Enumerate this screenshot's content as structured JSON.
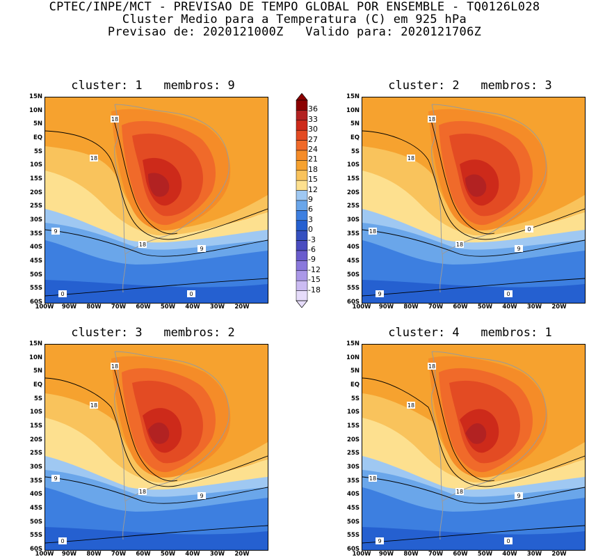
{
  "header": {
    "line1": "CPTEC/INPE/MCT - PREVISAO DE TEMPO GLOBAL POR ENSEMBLE - TQ0126L028",
    "line2": "Cluster Medio para a Temperatura (C) em 925 hPa",
    "line3": "Previsao de: 2020121000Z   Valido para: 2020121706Z"
  },
  "lat_ticks": [
    "15N",
    "10N",
    "5N",
    "EQ",
    "5S",
    "10S",
    "15S",
    "20S",
    "25S",
    "30S",
    "35S",
    "40S",
    "45S",
    "50S",
    "55S",
    "60S"
  ],
  "lon_ticks": [
    "100W",
    "90W",
    "80W",
    "70W",
    "60W",
    "50W",
    "40W",
    "30W",
    "20W"
  ],
  "colorbar": {
    "levels": [
      "36",
      "33",
      "30",
      "27",
      "24",
      "21",
      "18",
      "15",
      "12",
      "9",
      "6",
      "3",
      "0",
      "-3",
      "-6",
      "-9",
      "-12",
      "-15",
      "-18"
    ],
    "colors": [
      "#8b0000",
      "#b22222",
      "#cd2a1a",
      "#e34b23",
      "#f06a2a",
      "#f58c28",
      "#f6a22f",
      "#f9c35c",
      "#fde08f",
      "#9fc8f2",
      "#6aa6ea",
      "#3d7fe0",
      "#2560d0",
      "#3550c0",
      "#4a4cc0",
      "#6a5ccd",
      "#8a78dc",
      "#ab98e8",
      "#cbbbf2",
      "#e6dcfa"
    ]
  },
  "panels": [
    {
      "title": "cluster: 1   membros: 9",
      "contour_labels": [
        "18",
        "18",
        "18",
        "9",
        "9",
        "0",
        "0"
      ]
    },
    {
      "title": "cluster: 2   membros: 3",
      "contour_labels": [
        "18",
        "18",
        "18",
        "18",
        "9",
        "9",
        "0",
        "0"
      ]
    },
    {
      "title": "cluster: 3   membros: 2",
      "contour_labels": [
        "18",
        "18",
        "18",
        "9",
        "9",
        "0"
      ]
    },
    {
      "title": "cluster: 4   membros: 1",
      "contour_labels": [
        "18",
        "18",
        "18",
        "18",
        "9",
        "9",
        "0"
      ]
    }
  ]
}
